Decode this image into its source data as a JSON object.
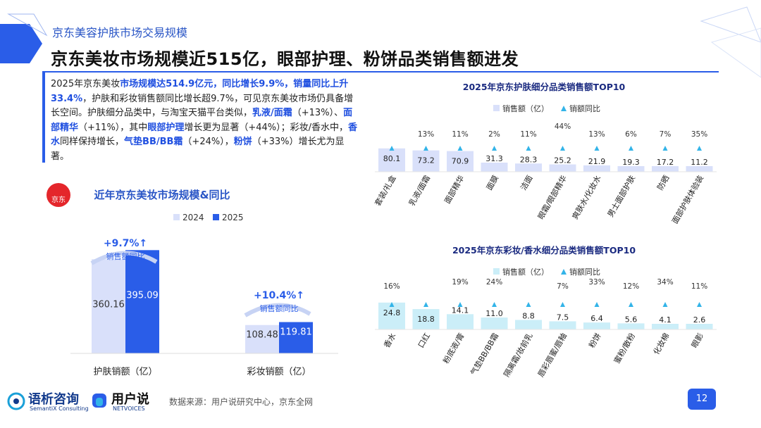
{
  "header": {
    "subtitle": "京东美容护肤市场交易规模",
    "title": "京东美妆市场规模近515亿，眼部护理、粉饼品类销售额进发"
  },
  "summary": {
    "p1": "2025年京东美妆",
    "h1": "市场规模达514.9亿元，同比增长9.9%，销量同比上升33.4%",
    "p2": "，护肤和彩妆销售额同比增长超9.7%，可见京东美妆市场仍具备增长空间。护肤细分品类中，与淘宝天猫平台类似，",
    "h2": "乳液/面霜",
    "p3": "（+13%）、",
    "h3": "面部精华",
    "p4": "（+11%），其中",
    "h4": "眼部护理",
    "p5": "增长更为显著（+44%）；彩妆/香水中，",
    "h5": "香水",
    "p6": "同样保持增长，",
    "h6": "气垫BB/BB霜",
    "p7": "（+24%），",
    "h7": "粉饼",
    "p8": "（+33%）增长尤为显著。"
  },
  "logo": {
    "text": "京东"
  },
  "footer": {
    "source": "数据来源：用户说研究中心，京东全网",
    "page": "12",
    "brand1": "语析咨询",
    "brand1_sub": "SemantiX Consulting",
    "brand2": "用户说",
    "brand2_sub": "NETVOICES"
  },
  "colors": {
    "accent": "#2a5de8",
    "light": "#d9e0fa",
    "cyan": "#cbeef8",
    "triangle": "#33b4e8"
  },
  "chart_data": [
    {
      "type": "bar",
      "title": "近年京东美妆市场规模&同比",
      "categories": [
        "护肤销额（亿）",
        "彩妆销额（亿）"
      ],
      "series": [
        {
          "name": "2024",
          "values": [
            360.16,
            108.48
          ]
        },
        {
          "name": "2025",
          "values": [
            395.09,
            119.81
          ]
        }
      ],
      "annotations": [
        {
          "value": "+9.7%↑",
          "label": "销售额同比"
        },
        {
          "value": "+10.4%↑",
          "label": "销售额同比"
        }
      ],
      "legend": "top"
    },
    {
      "type": "bar",
      "title": "2025年京东护肤细分品类销售额TOP10",
      "categories": [
        "套装/礼盒",
        "乳液/面霜",
        "面部精华",
        "面膜",
        "洁面",
        "眼霜/眼部精华",
        "爽肤水/化妆水",
        "男士面部护肤",
        "防晒",
        "面部护肤体验装"
      ],
      "series": [
        {
          "name": "销售额（亿）",
          "values": [
            80.1,
            73.2,
            70.9,
            31.3,
            28.3,
            25.2,
            21.9,
            19.3,
            17.2,
            11.2
          ]
        },
        {
          "name": "销额同比",
          "values": [
            "",
            "13%",
            "11%",
            "2%",
            "11%",
            "44%",
            "13%",
            "6%",
            "7%",
            "35%"
          ]
        }
      ],
      "legend": "top"
    },
    {
      "type": "bar",
      "title": "2025年京东彩妆/香水细分品类销售额TOP10",
      "categories": [
        "香水",
        "口红",
        "粉底液/膏",
        "气垫BB/BB霜",
        "隔离霜/妆前乳",
        "唇彩唇蜜/唇釉",
        "粉饼",
        "蜜粉/散粉",
        "化妆棉",
        "眼影"
      ],
      "series": [
        {
          "name": "销售额（亿）",
          "values": [
            24.8,
            18.8,
            14.1,
            11.0,
            8.8,
            7.5,
            6.4,
            5.6,
            4.1,
            2.6
          ]
        },
        {
          "name": "销额同比",
          "values": [
            "16%",
            "",
            "19%",
            "24%",
            "",
            "7%",
            "33%",
            "12%",
            "34%",
            "11%"
          ]
        }
      ],
      "legend": "top"
    }
  ]
}
